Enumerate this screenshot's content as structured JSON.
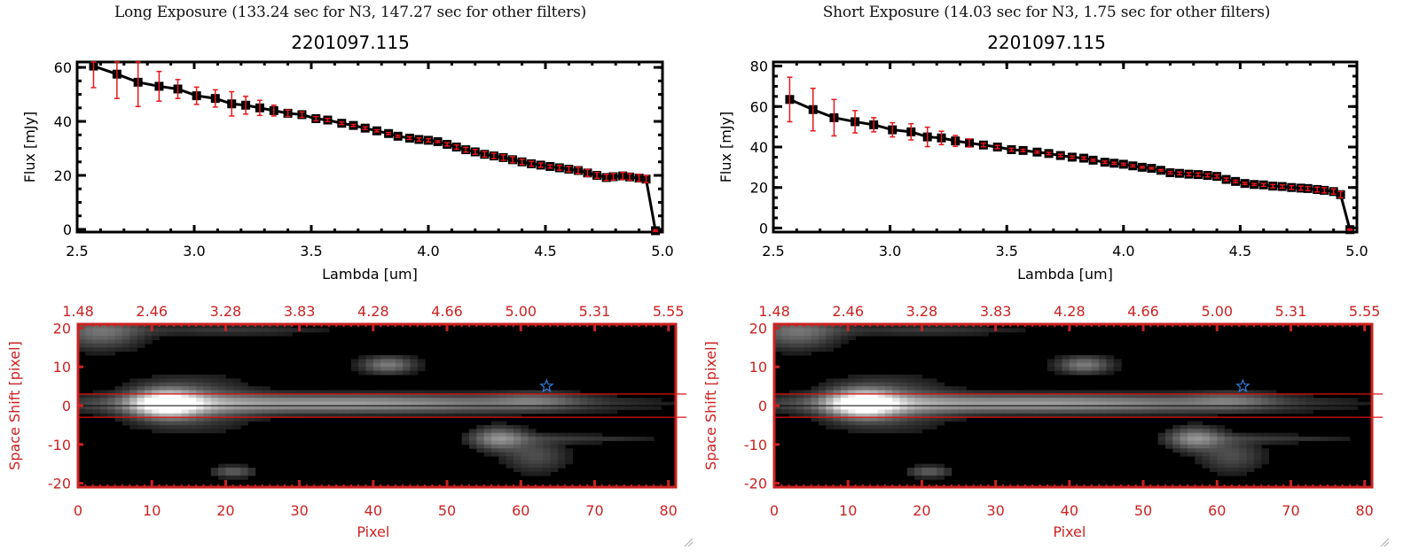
{
  "panels": [
    {
      "id": "long",
      "exposure_title": "Long Exposure (133.24 sec for N3, 147.27 sec for other filters)",
      "object_title": "2201097.115"
    },
    {
      "id": "short",
      "exposure_title": "Short Exposure (14.03 sec for N3, 1.75 sec for other filters)",
      "object_title": "2201097.115"
    }
  ],
  "colors": {
    "spectrum_line": "#000000",
    "errorbar": "#e8161b",
    "image_axes": "#cc2222",
    "aperture_lines": "#dd1111",
    "star_marker": "#2f7fe0"
  },
  "chart_data": [
    {
      "type": "line",
      "panel": "long",
      "title": "2201097.115",
      "xlabel": "Lambda [um]",
      "ylabel": "Flux [mJy]",
      "xlim": [
        2.5,
        5.0
      ],
      "ylim": [
        -1,
        62
      ],
      "xticks": [
        2.5,
        3.0,
        3.5,
        4.0,
        4.5,
        5.0
      ],
      "xtick_labels": [
        "2.5",
        "3.0",
        "3.5",
        "4.0",
        "4.5",
        "5.0"
      ],
      "yticks": [
        0,
        20,
        40,
        60
      ],
      "ytick_labels": [
        "0",
        "20",
        "40",
        "60"
      ],
      "grid": false,
      "series": [
        {
          "name": "flux",
          "x": [
            2.57,
            2.67,
            2.76,
            2.85,
            2.93,
            3.01,
            3.09,
            3.16,
            3.22,
            3.28,
            3.34,
            3.4,
            3.46,
            3.52,
            3.57,
            3.63,
            3.68,
            3.73,
            3.78,
            3.83,
            3.87,
            3.92,
            3.96,
            4.0,
            4.04,
            4.08,
            4.12,
            4.16,
            4.2,
            4.24,
            4.28,
            4.32,
            4.36,
            4.4,
            4.44,
            4.48,
            4.52,
            4.56,
            4.6,
            4.64,
            4.68,
            4.72,
            4.76,
            4.79,
            4.83,
            4.86,
            4.9,
            4.93,
            4.97
          ],
          "y": [
            60.5,
            57.5,
            54.5,
            53,
            52,
            49.5,
            48.5,
            46.5,
            46,
            45,
            44,
            43,
            42.5,
            41,
            40.5,
            39.3,
            38.5,
            37.5,
            36.5,
            35.5,
            34.5,
            33.8,
            33.3,
            33,
            32.5,
            31.5,
            30.5,
            29.5,
            28.7,
            27.8,
            27.2,
            26.6,
            25.8,
            25,
            24.3,
            23.8,
            23.3,
            22.8,
            22.3,
            21.8,
            20.9,
            20,
            19.2,
            19.5,
            19.8,
            19.4,
            19,
            18.6,
            -0.5
          ],
          "yerr": [
            8,
            9,
            9,
            5.5,
            3.5,
            3.2,
            3.2,
            4.5,
            3.3,
            2.8,
            2,
            1.2,
            1,
            0.8,
            0.6,
            0.5,
            0.4,
            0.5,
            0.4,
            0.4,
            0.4,
            0.5,
            0.6,
            0.6,
            0.3,
            0.6,
            0.8,
            0.9,
            0.9,
            1,
            1,
            1,
            1.1,
            1,
            0.9,
            0.8,
            0.6,
            0.9,
            1,
            1.2,
            1.3,
            1.1,
            1.1,
            1.2,
            1.3,
            1.2,
            1.3,
            1.3,
            0.3
          ]
        }
      ]
    },
    {
      "type": "line",
      "panel": "short",
      "title": "2201097.115",
      "xlabel": "Lambda [um]",
      "ylabel": "Flux [mJy]",
      "xlim": [
        2.5,
        5.0
      ],
      "ylim": [
        -2,
        82
      ],
      "xticks": [
        2.5,
        3.0,
        3.5,
        4.0,
        4.5,
        5.0
      ],
      "xtick_labels": [
        "2.5",
        "3.0",
        "3.5",
        "4.0",
        "4.5",
        "5.0"
      ],
      "yticks": [
        0,
        20,
        40,
        60,
        80
      ],
      "ytick_labels": [
        "0",
        "20",
        "40",
        "60",
        "80"
      ],
      "grid": false,
      "series": [
        {
          "name": "flux",
          "x": [
            2.57,
            2.67,
            2.76,
            2.85,
            2.93,
            3.01,
            3.09,
            3.16,
            3.22,
            3.28,
            3.34,
            3.4,
            3.46,
            3.52,
            3.57,
            3.63,
            3.68,
            3.73,
            3.78,
            3.83,
            3.87,
            3.92,
            3.96,
            4.0,
            4.04,
            4.08,
            4.12,
            4.16,
            4.2,
            4.24,
            4.28,
            4.32,
            4.36,
            4.4,
            4.44,
            4.48,
            4.52,
            4.56,
            4.6,
            4.64,
            4.68,
            4.72,
            4.76,
            4.79,
            4.83,
            4.86,
            4.9,
            4.93,
            4.97
          ],
          "y": [
            63.5,
            58.5,
            54.5,
            52.5,
            51,
            48.5,
            47.5,
            45,
            44.5,
            43,
            42,
            41,
            40,
            38.7,
            38.3,
            37.5,
            36.8,
            35.8,
            35,
            34.5,
            33.5,
            32.5,
            32,
            31.5,
            30.7,
            30,
            29.5,
            28.5,
            27.3,
            27,
            26.6,
            26.4,
            26,
            25.5,
            24,
            23,
            22,
            21.5,
            21.3,
            20.7,
            20.5,
            20,
            19.7,
            19.5,
            19,
            18.6,
            18,
            16.5,
            -0.8
          ],
          "yerr": [
            11,
            10.5,
            9,
            5.5,
            3.5,
            3.5,
            4,
            4.8,
            3.3,
            2.7,
            2,
            0.9,
            0.8,
            0.7,
            0.6,
            0.5,
            0.6,
            0.6,
            0.6,
            0.6,
            0.5,
            0.6,
            0.5,
            0.5,
            0.5,
            0.4,
            0.4,
            0.4,
            0.6,
            0.7,
            0.8,
            0.8,
            0.8,
            0.8,
            0.7,
            0.6,
            0.5,
            0.5,
            0.7,
            0.8,
            0.8,
            0.9,
            1,
            1,
            1.2,
            1.3,
            1.3,
            1.5,
            0.3
          ]
        }
      ]
    },
    {
      "type": "heatmap",
      "panel": "long",
      "xlabel": "Pixel",
      "ylabel": "Space Shift [pixel]",
      "xlim": [
        0,
        81
      ],
      "ylim": [
        -21,
        21
      ],
      "xticks": [
        0,
        10,
        20,
        30,
        40,
        50,
        60,
        70,
        80
      ],
      "xtick_labels": [
        "0",
        "10",
        "20",
        "30",
        "40",
        "50",
        "60",
        "70",
        "80"
      ],
      "yticks": [
        -20,
        -10,
        0,
        10,
        20
      ],
      "ytick_labels": [
        "-20",
        "-10",
        "0",
        "10",
        "20"
      ],
      "top_axis_label_positions": [
        0,
        10,
        20,
        30,
        40,
        50,
        60,
        70,
        80
      ],
      "top_axis_labels": [
        "1.48",
        "2.46",
        "3.28",
        "3.83",
        "4.28",
        "4.66",
        "5.00",
        "5.31",
        "5.55"
      ],
      "aperture_lines_y": [
        3,
        -3
      ],
      "center_line_y": 0,
      "star_marker": {
        "x": 63.5,
        "y": 5
      },
      "sources": [
        {
          "x": 12,
          "y": 0.5,
          "sx": 3,
          "sy": 2.2,
          "peak": 1.0
        },
        {
          "x": 35,
          "y": 0.5,
          "sx": 22,
          "sy": 1.6,
          "peak": 0.55
        },
        {
          "x": 62,
          "y": 1.5,
          "sx": 4,
          "sy": 1.6,
          "peak": 0.2
        },
        {
          "x": 15,
          "y": 0.5,
          "sx": 6,
          "sy": 4.5,
          "peak": 0.28
        },
        {
          "x": 42,
          "y": 10.5,
          "sx": 2.5,
          "sy": 1.5,
          "peak": 0.4
        },
        {
          "x": 57,
          "y": -8.5,
          "sx": 2.5,
          "sy": 2,
          "peak": 0.45
        },
        {
          "x": 62,
          "y": -13,
          "sx": 3,
          "sy": 3,
          "peak": 0.22
        },
        {
          "x": 68,
          "y": -8.5,
          "sx": 8,
          "sy": 0.8,
          "peak": 0.14
        },
        {
          "x": 3,
          "y": 19,
          "sx": 4,
          "sy": 3,
          "peak": 0.35
        },
        {
          "x": 20,
          "y": 19.5,
          "sx": 10,
          "sy": 1,
          "peak": 0.15
        },
        {
          "x": 21,
          "y": -17,
          "sx": 2,
          "sy": 1,
          "peak": 0.3
        }
      ]
    },
    {
      "type": "heatmap",
      "panel": "short",
      "xlabel": "Pixel",
      "ylabel": "Space Shift [pixel]",
      "xlim": [
        0,
        81
      ],
      "ylim": [
        -21,
        21
      ],
      "xticks": [
        0,
        10,
        20,
        30,
        40,
        50,
        60,
        70,
        80
      ],
      "xtick_labels": [
        "0",
        "10",
        "20",
        "30",
        "40",
        "50",
        "60",
        "70",
        "80"
      ],
      "yticks": [
        -20,
        -10,
        0,
        10,
        20
      ],
      "ytick_labels": [
        "-20",
        "-10",
        "0",
        "10",
        "20"
      ],
      "top_axis_label_positions": [
        0,
        10,
        20,
        30,
        40,
        50,
        60,
        70,
        80
      ],
      "top_axis_labels": [
        "1.48",
        "2.46",
        "3.28",
        "3.83",
        "4.28",
        "4.66",
        "5.00",
        "5.31",
        "5.55"
      ],
      "aperture_lines_y": [
        3,
        -3
      ],
      "center_line_y": 0,
      "star_marker": {
        "x": 63.5,
        "y": 5
      },
      "sources": [
        {
          "x": 12,
          "y": 0.5,
          "sx": 3,
          "sy": 2.2,
          "peak": 1.0
        },
        {
          "x": 35,
          "y": 0.5,
          "sx": 22,
          "sy": 1.6,
          "peak": 0.55
        },
        {
          "x": 62,
          "y": 1.5,
          "sx": 4,
          "sy": 1.6,
          "peak": 0.2
        },
        {
          "x": 15,
          "y": 0.5,
          "sx": 6,
          "sy": 4.5,
          "peak": 0.28
        },
        {
          "x": 42,
          "y": 10.5,
          "sx": 2.5,
          "sy": 1.5,
          "peak": 0.4
        },
        {
          "x": 57,
          "y": -8.5,
          "sx": 2.5,
          "sy": 2,
          "peak": 0.45
        },
        {
          "x": 62,
          "y": -13,
          "sx": 3,
          "sy": 3,
          "peak": 0.22
        },
        {
          "x": 68,
          "y": -8.5,
          "sx": 8,
          "sy": 0.8,
          "peak": 0.14
        },
        {
          "x": 3,
          "y": 19,
          "sx": 4,
          "sy": 3,
          "peak": 0.35
        },
        {
          "x": 20,
          "y": 19.5,
          "sx": 10,
          "sy": 1,
          "peak": 0.15
        },
        {
          "x": 21,
          "y": -17,
          "sx": 2,
          "sy": 1,
          "peak": 0.3
        }
      ]
    }
  ]
}
